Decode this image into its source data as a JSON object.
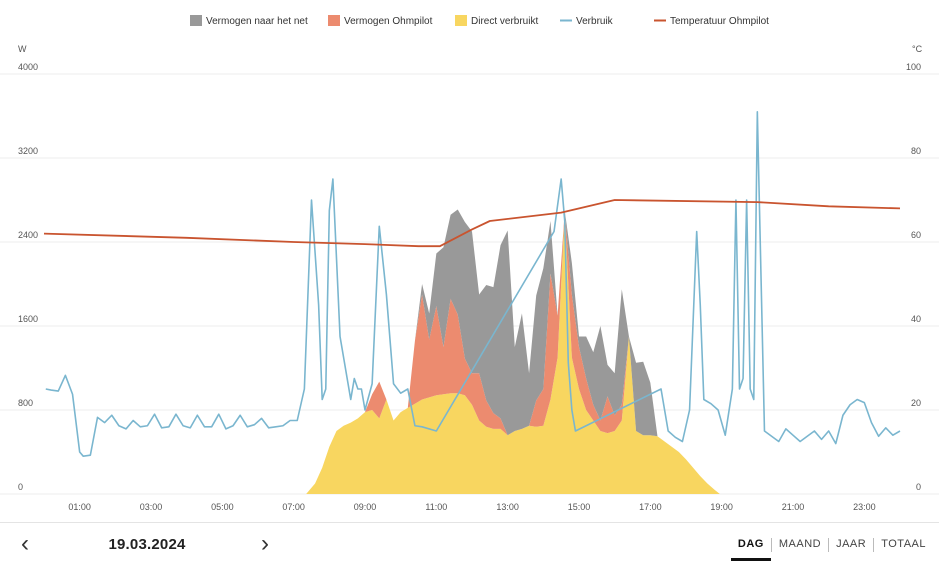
{
  "legend": [
    {
      "label": "Vermogen naar het net",
      "color": "#999999",
      "kind": "box"
    },
    {
      "label": "Vermogen Ohmpilot",
      "color": "#ec8b6f",
      "kind": "box"
    },
    {
      "label": "Direct verbruikt",
      "color": "#f8d660",
      "kind": "box"
    },
    {
      "label": "Verbruik",
      "color": "#7ab6cf",
      "kind": "line"
    },
    {
      "label": "Temperatuur Ohmpilot",
      "color": "#c9542f",
      "kind": "line"
    }
  ],
  "chart_data": {
    "type": "area",
    "left_axis": {
      "unit": "W",
      "ylim": [
        0,
        4000
      ],
      "ticks": [
        "0",
        "800",
        "1600",
        "2400",
        "3200",
        "4000"
      ]
    },
    "right_axis": {
      "unit": "°C",
      "ylim": [
        0,
        100
      ],
      "ticks": [
        "0",
        "20",
        "40",
        "60",
        "80",
        "100"
      ]
    },
    "x_axis": {
      "xlim": [
        0,
        24
      ],
      "ticks": [
        "01:00",
        "03:00",
        "05:00",
        "07:00",
        "09:00",
        "11:00",
        "13:00",
        "15:00",
        "17:00",
        "19:00",
        "21:00",
        "23:00"
      ],
      "tick_hours": [
        1,
        3,
        5,
        7,
        9,
        11,
        13,
        15,
        17,
        19,
        21,
        23
      ]
    },
    "grid": true,
    "legend_position": "top",
    "series": [
      {
        "name": "Direct verbruikt",
        "type": "stacked-area",
        "axis": "left",
        "color": "#f8d660",
        "x": [
          7.35,
          7.6,
          7.8,
          8.0,
          8.2,
          8.4,
          8.6,
          8.8,
          9.0,
          9.2,
          9.4,
          9.6,
          9.8,
          10.0,
          10.2,
          10.4,
          10.6,
          10.8,
          11.0,
          11.2,
          11.4,
          11.6,
          11.8,
          12.0,
          12.2,
          12.4,
          12.6,
          12.8,
          13.0,
          13.2,
          13.4,
          13.6,
          13.8,
          14.0,
          14.2,
          14.4,
          14.6,
          14.8,
          15.0,
          15.2,
          15.4,
          15.6,
          15.8,
          16.0,
          16.2,
          16.4,
          16.6,
          16.8,
          17.0,
          17.2,
          17.4,
          17.6,
          17.8,
          18.0,
          18.2,
          18.4,
          18.6,
          18.8,
          18.95
        ],
        "y": [
          0,
          100,
          250,
          450,
          600,
          650,
          680,
          720,
          780,
          800,
          720,
          900,
          700,
          780,
          820,
          860,
          900,
          920,
          940,
          950,
          960,
          960,
          940,
          850,
          700,
          640,
          620,
          620,
          560,
          600,
          620,
          650,
          640,
          650,
          900,
          1300,
          2700,
          1300,
          1000,
          800,
          700,
          600,
          580,
          600,
          700,
          1500,
          600,
          560,
          560,
          550,
          500,
          450,
          400,
          330,
          250,
          170,
          100,
          40,
          0
        ]
      },
      {
        "name": "Vermogen Ohmpilot",
        "type": "stacked-area",
        "axis": "left",
        "color": "#ec8b6f",
        "x": [
          9.0,
          9.2,
          9.4,
          9.6,
          9.8,
          10.0,
          10.2,
          10.4,
          10.6,
          10.8,
          11.0,
          11.2,
          11.4,
          11.6,
          11.8,
          12.0,
          12.2,
          12.4,
          12.6,
          12.8,
          13.0,
          13.2,
          13.4,
          13.6,
          13.8,
          14.0,
          14.2,
          14.4,
          14.6,
          14.8,
          15.0,
          15.2,
          15.4,
          15.6,
          15.8,
          16.0,
          16.2,
          16.4,
          16.6,
          16.8,
          17.0
        ],
        "y": [
          0,
          150,
          350,
          0,
          0,
          0,
          0,
          600,
          1000,
          550,
          850,
          450,
          900,
          750,
          350,
          300,
          450,
          250,
          150,
          100,
          0,
          0,
          0,
          0,
          250,
          350,
          1200,
          400,
          0,
          600,
          400,
          300,
          150,
          100,
          350,
          150,
          150,
          0,
          0,
          0,
          0
        ]
      },
      {
        "name": "Vermogen naar het net",
        "type": "stacked-area",
        "axis": "left",
        "color": "#999999",
        "x": [
          10.2,
          10.4,
          10.6,
          10.8,
          11.0,
          11.2,
          11.4,
          11.6,
          11.8,
          12.0,
          12.2,
          12.4,
          12.6,
          12.8,
          13.0,
          13.2,
          13.4,
          13.6,
          13.8,
          14.0,
          14.2,
          14.4,
          14.6,
          14.8,
          15.0,
          15.2,
          15.4,
          15.6,
          15.8,
          16.0,
          16.2,
          16.4,
          16.6,
          16.8,
          17.0,
          17.2,
          17.4
        ],
        "y": [
          0,
          0,
          100,
          250,
          500,
          950,
          800,
          1000,
          1300,
          1350,
          750,
          1100,
          1200,
          1650,
          1950,
          800,
          1100,
          500,
          1000,
          1150,
          500,
          0,
          0,
          300,
          100,
          400,
          500,
          900,
          300,
          400,
          1100,
          0,
          650,
          700,
          500,
          0,
          0
        ]
      },
      {
        "name": "Verbruik",
        "type": "line",
        "axis": "left",
        "color": "#7ab6cf",
        "x": [
          0.05,
          0.2,
          0.4,
          0.6,
          0.8,
          1.0,
          1.1,
          1.3,
          1.5,
          1.7,
          1.9,
          2.1,
          2.3,
          2.5,
          2.7,
          2.9,
          3.1,
          3.3,
          3.5,
          3.7,
          3.9,
          4.1,
          4.3,
          4.5,
          4.7,
          4.9,
          5.1,
          5.3,
          5.5,
          5.7,
          5.9,
          6.1,
          6.3,
          6.5,
          6.7,
          6.9,
          7.1,
          7.3,
          7.5,
          7.7,
          7.8,
          7.9,
          8.0,
          8.1,
          8.3,
          8.5,
          8.6,
          8.7,
          8.8,
          8.9,
          9.0,
          9.2,
          9.4,
          9.6,
          9.8,
          10.0,
          10.2,
          10.4,
          10.6,
          11.0,
          14.3,
          14.5,
          14.6,
          14.7,
          14.8,
          14.9,
          17.3,
          17.5,
          17.7,
          17.9,
          18.1,
          18.3,
          18.4,
          18.5,
          18.7,
          18.9,
          19.1,
          19.3,
          19.4,
          19.5,
          19.6,
          19.7,
          19.8,
          19.9,
          20.0,
          20.2,
          20.4,
          20.6,
          20.8,
          21.0,
          21.2,
          21.4,
          21.6,
          21.8,
          22.0,
          22.2,
          22.4,
          22.6,
          22.8,
          23.0,
          23.2,
          23.4,
          23.6,
          23.8,
          24.0
        ],
        "y": [
          1000,
          990,
          980,
          1130,
          950,
          400,
          360,
          370,
          730,
          680,
          750,
          650,
          620,
          700,
          640,
          650,
          760,
          630,
          640,
          760,
          650,
          630,
          750,
          640,
          640,
          760,
          620,
          650,
          750,
          640,
          660,
          720,
          630,
          640,
          650,
          700,
          700,
          1000,
          2800,
          1800,
          900,
          1000,
          2700,
          3000,
          1500,
          1100,
          900,
          1100,
          1000,
          1000,
          800,
          1050,
          2550,
          1900,
          1050,
          960,
          1000,
          650,
          640,
          600,
          2500,
          3000,
          2600,
          1250,
          800,
          600,
          1000,
          600,
          540,
          500,
          800,
          2500,
          1800,
          900,
          860,
          800,
          560,
          1000,
          2800,
          1000,
          1100,
          2800,
          1000,
          900,
          3640,
          600,
          550,
          500,
          620,
          560,
          500,
          550,
          600,
          520,
          600,
          480,
          750,
          850,
          900,
          870,
          680,
          550,
          630,
          560,
          600
        ]
      },
      {
        "name": "Temperatuur Ohmpilot",
        "type": "line",
        "axis": "right",
        "color": "#c9542f",
        "x": [
          0.0,
          4.0,
          7.0,
          9.0,
          10.5,
          11.1,
          12.0,
          12.5,
          14.5,
          16.0,
          20.0,
          22.0,
          24.0
        ],
        "y": [
          62,
          61,
          60,
          59.5,
          59,
          59,
          63,
          65,
          67,
          70,
          69.5,
          68.5,
          68
        ]
      }
    ]
  },
  "footer": {
    "prev_icon": "chevron-left-icon",
    "next_icon": "chevron-right-icon",
    "prev_glyph": "‹",
    "next_glyph": "›",
    "date": "19.03.2024",
    "tabs": [
      "DAG",
      "MAAND",
      "JAAR",
      "TOTAAL"
    ],
    "active_tab": "DAG"
  }
}
